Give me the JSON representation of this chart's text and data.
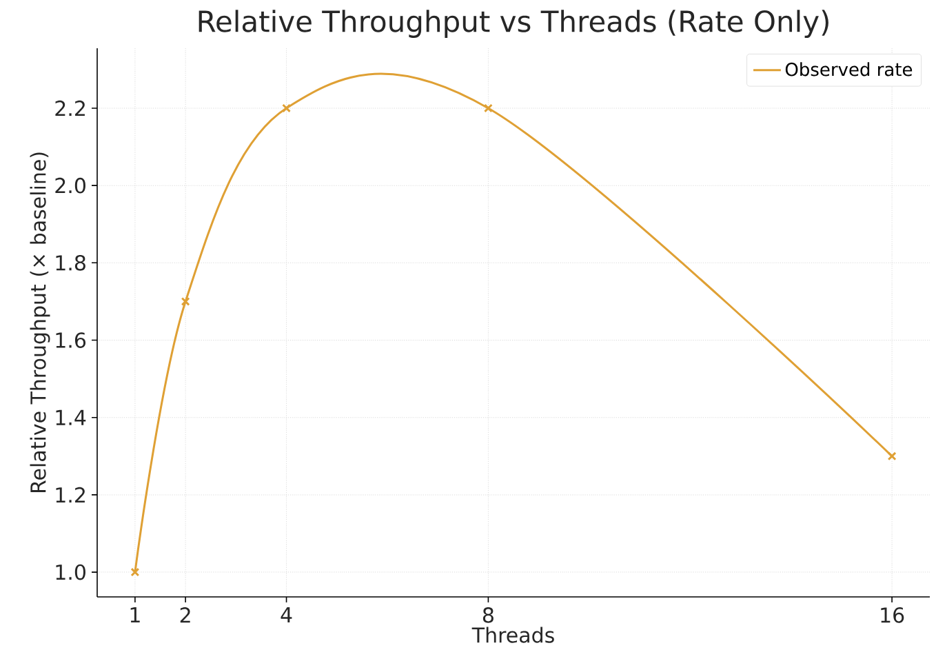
{
  "chart_data": {
    "type": "line",
    "title": "Relative Throughput vs Threads (Rate Only)",
    "xlabel": "Threads",
    "ylabel": "Relative Throughput (× baseline)",
    "x": [
      1,
      2,
      4,
      8,
      16
    ],
    "series": [
      {
        "name": "Observed rate",
        "color": "#dfa034",
        "values": [
          1.0,
          1.7,
          2.2,
          2.2,
          1.3
        ]
      }
    ],
    "xlim": [
      0.25,
      16.75
    ],
    "ylim": [
      0.936,
      2.355
    ],
    "xticks": [
      1,
      2,
      4,
      8,
      16
    ],
    "yticks": [
      {
        "value": 1.0,
        "label": "1.0"
      },
      {
        "value": 1.2,
        "label": "1.2"
      },
      {
        "value": 1.4,
        "label": "1.4"
      },
      {
        "value": 1.6,
        "label": "1.6"
      },
      {
        "value": 1.8,
        "label": "1.8"
      },
      {
        "value": 2.0,
        "label": "2.0"
      },
      {
        "value": 2.2,
        "label": "2.2"
      }
    ],
    "grid": true,
    "legend": "top right",
    "marker": "cross",
    "line_style": "solid"
  }
}
